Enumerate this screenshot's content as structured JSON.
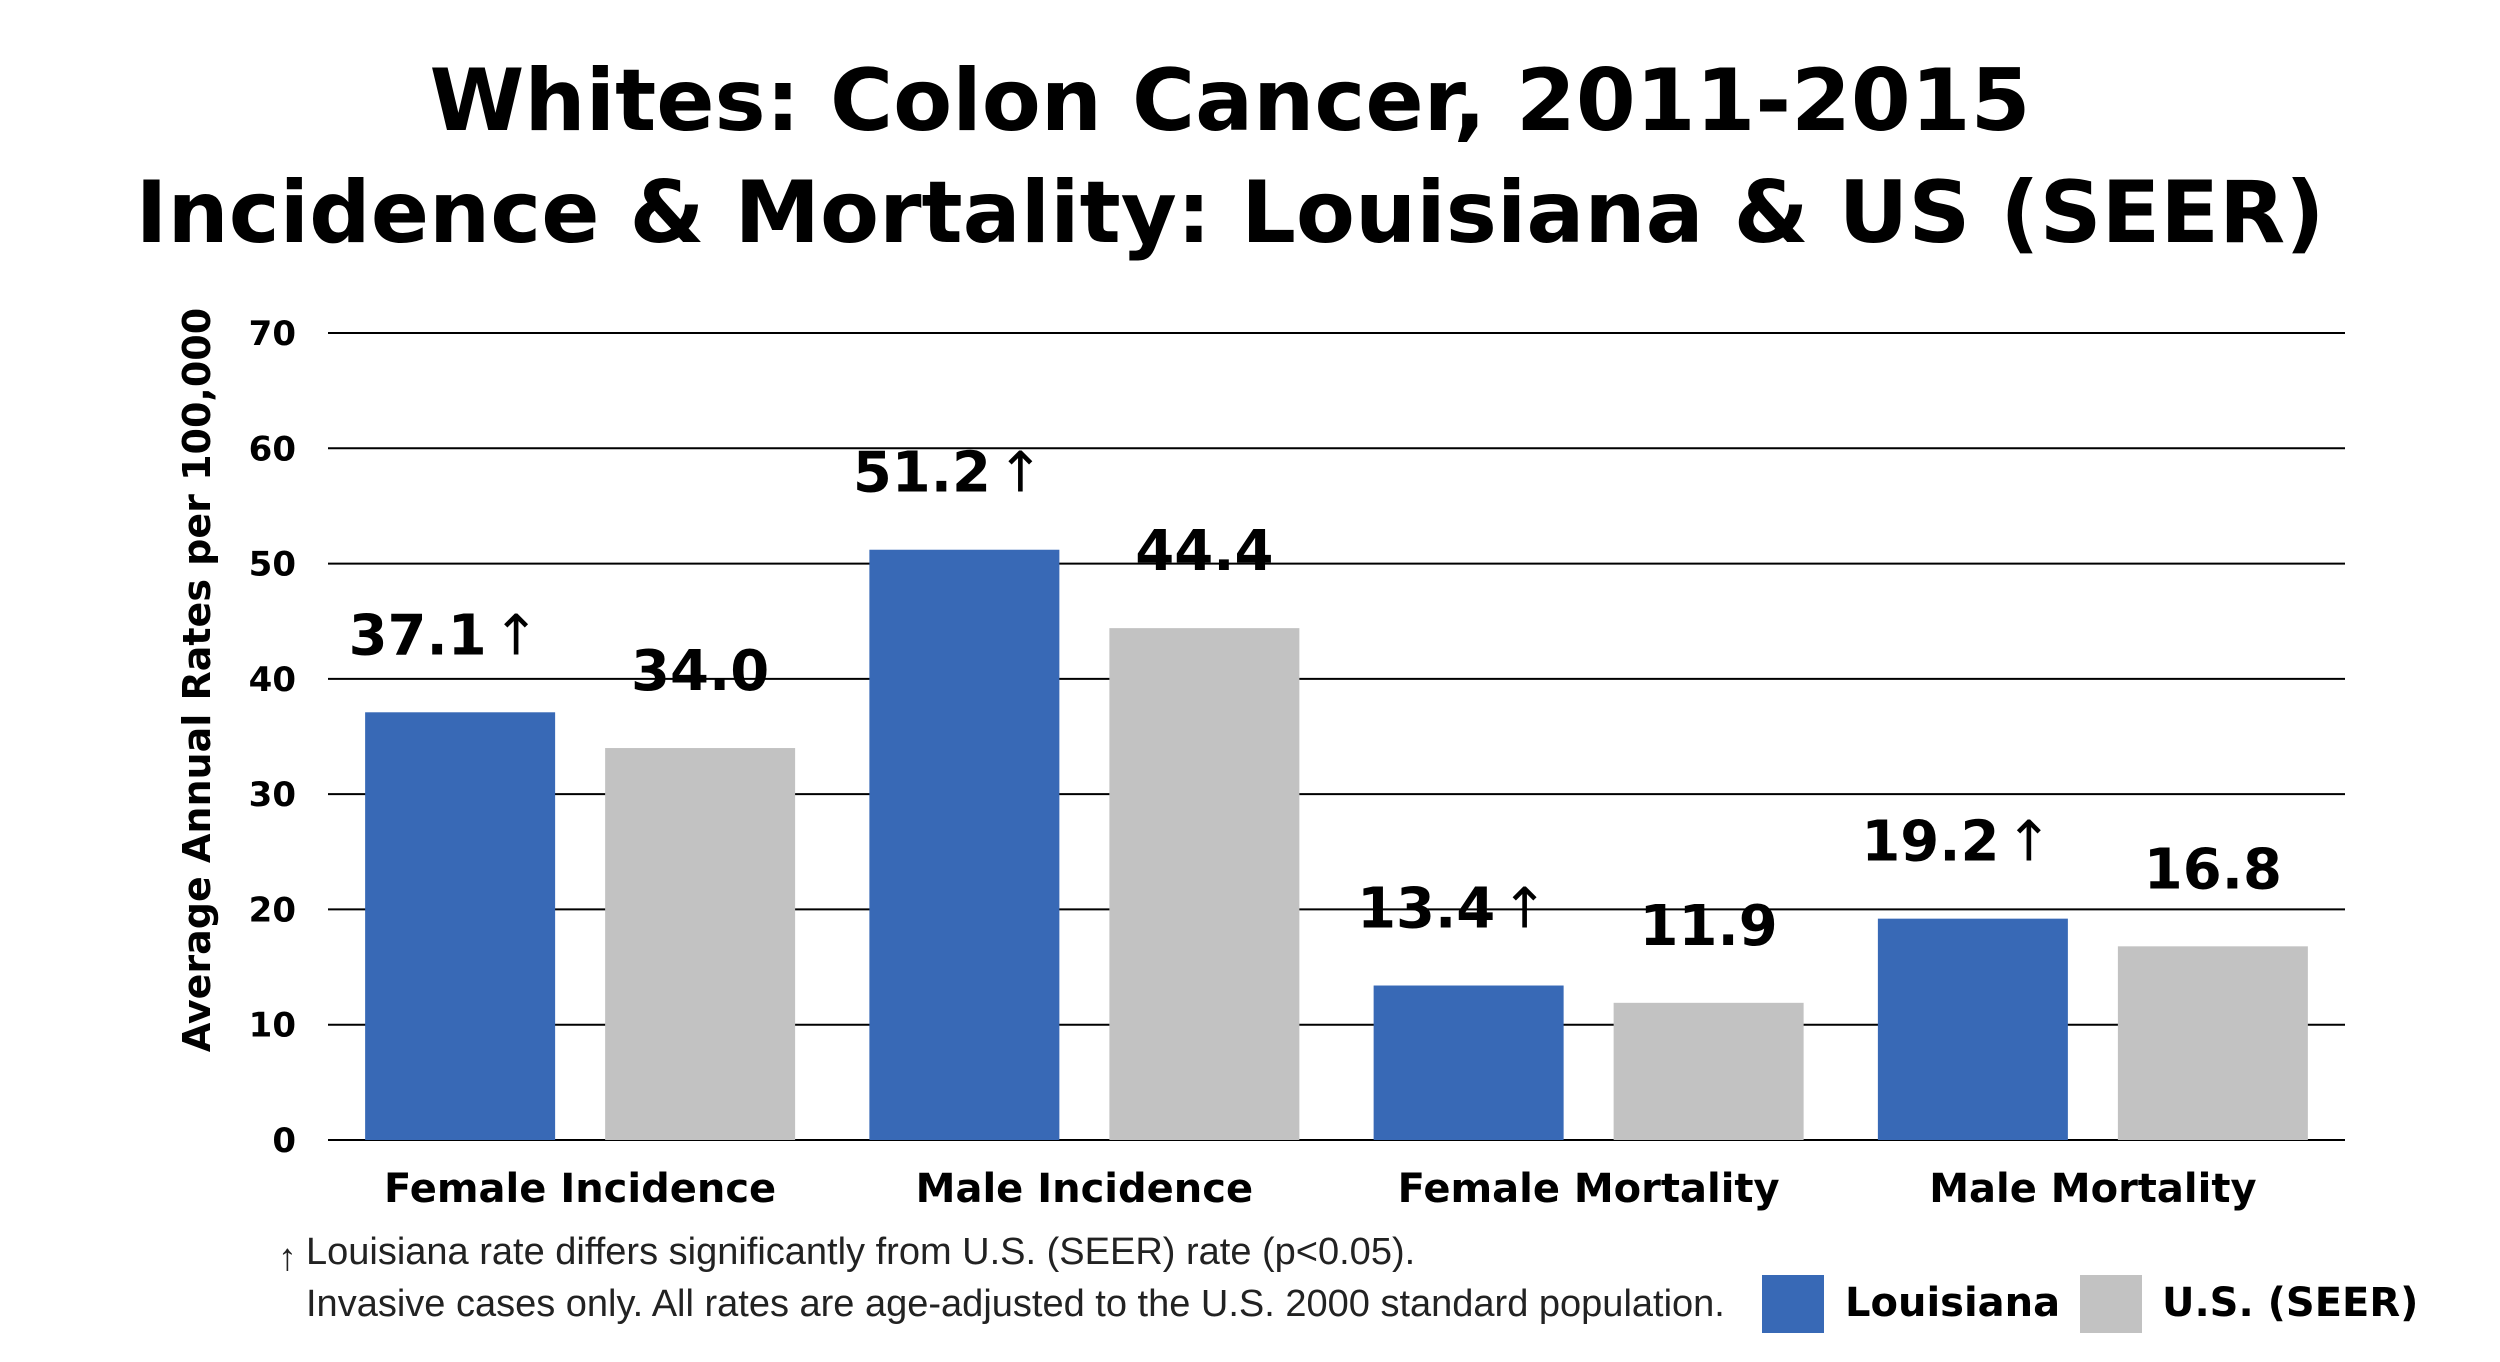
{
  "chart_data": {
    "type": "bar",
    "title_line1": "Whites: Colon Cancer, 2011-2015",
    "title_line2": "Incidence & Mortality: Louisiana & US (SEER)",
    "ylabel": "Average Annual Rates per 100,000",
    "ylim": [
      0,
      70
    ],
    "yticks": [
      0,
      10,
      20,
      30,
      40,
      50,
      60,
      70
    ],
    "grid": true,
    "categories": [
      "Female Incidence",
      "Male Incidence",
      "Female Mortality",
      "Male Mortality"
    ],
    "series": [
      {
        "name": "Louisiana",
        "color": "#3869B6",
        "values": [
          37.1,
          51.2,
          13.4,
          19.2
        ],
        "labels": [
          "37.1",
          "51.2",
          "13.4",
          "19.2"
        ],
        "significant": [
          true,
          true,
          true,
          true
        ]
      },
      {
        "name": "U.S. (SEER)",
        "color": "#C2C2C2",
        "values": [
          34.0,
          44.4,
          11.9,
          16.8
        ],
        "labels": [
          "34.0",
          "44.4",
          "11.9",
          "16.8"
        ],
        "significant": [
          false,
          false,
          false,
          false
        ]
      }
    ],
    "significance_marker": "↑",
    "legend_position": "bottom-right"
  },
  "footnote": {
    "marker": "↑",
    "line1": "Louisiana rate differs significantly from U.S. (SEER) rate (p<0.05).",
    "line2": "Invasive cases only. All rates are age-adjusted to the U.S. 2000 standard population."
  }
}
